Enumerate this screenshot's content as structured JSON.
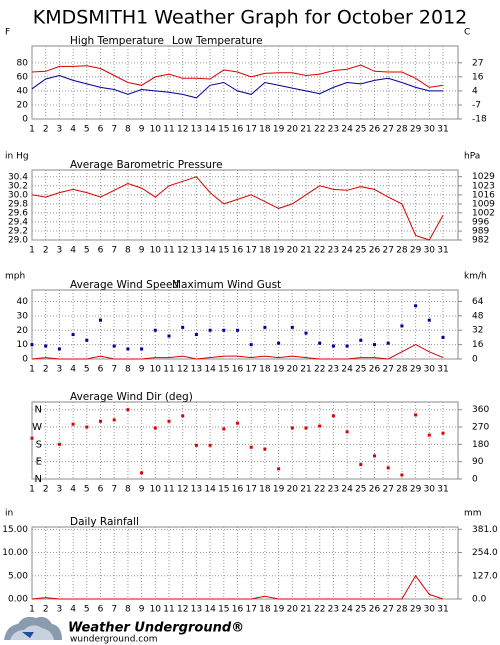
{
  "title": "KMDSMITH1 Weather Graph for October 2012",
  "chart_data": [
    {
      "type": "line",
      "y_label": "F",
      "y2_label": "C",
      "categories": [
        "1",
        "2",
        "3",
        "4",
        "5",
        "6",
        "7",
        "8",
        "9",
        "10",
        "11",
        "12",
        "13",
        "14",
        "15",
        "16",
        "17",
        "18",
        "19",
        "20",
        "21",
        "22",
        "23",
        "24",
        "25",
        "26",
        "27",
        "28",
        "29",
        "30",
        "31"
      ],
      "series": [
        {
          "name": "High Temperature",
          "color": "#dd0000",
          "values": [
            67,
            68,
            75,
            75,
            76,
            72,
            62,
            52,
            48,
            60,
            64,
            58,
            58,
            57,
            70,
            67,
            60,
            65,
            66,
            66,
            62,
            64,
            69,
            71,
            77,
            68,
            67,
            67,
            58,
            45,
            48
          ]
        },
        {
          "name": "Low Temperature",
          "color": "#000099",
          "values": [
            43,
            57,
            62,
            55,
            50,
            45,
            42,
            35,
            42,
            40,
            38,
            35,
            30,
            48,
            52,
            40,
            35,
            52,
            48,
            44,
            40,
            36,
            45,
            52,
            50,
            55,
            58,
            52,
            45,
            40,
            40
          ]
        }
      ],
      "ylim": [
        0,
        104
      ],
      "yticks": [
        0,
        20,
        40,
        60,
        80
      ],
      "y2lim": [
        -17.8,
        40
      ],
      "y2ticks": [
        {
          "value": -17.8,
          "label": "-18"
        },
        {
          "value": -6.7,
          "label": "-7"
        },
        {
          "value": 4.4,
          "label": "4"
        },
        {
          "value": 15.6,
          "label": "16"
        },
        {
          "value": 26.7,
          "label": "27"
        }
      ],
      "grid": true
    },
    {
      "type": "line",
      "y_label": "in Hg",
      "y2_label": "hPa",
      "categories": [
        "1",
        "2",
        "3",
        "4",
        "5",
        "6",
        "7",
        "8",
        "9",
        "10",
        "11",
        "12",
        "13",
        "14",
        "15",
        "16",
        "17",
        "18",
        "19",
        "20",
        "21",
        "22",
        "23",
        "24",
        "25",
        "26",
        "27",
        "28",
        "29",
        "30",
        "31"
      ],
      "series": [
        {
          "name": "Average Barometric Pressure",
          "color": "#dd0000",
          "values": [
            30.0,
            29.95,
            30.05,
            30.12,
            30.05,
            29.95,
            30.1,
            30.25,
            30.15,
            29.95,
            30.2,
            30.3,
            30.4,
            30.05,
            29.8,
            29.9,
            30.0,
            29.85,
            29.7,
            29.8,
            30.0,
            30.2,
            30.12,
            30.1,
            30.18,
            30.12,
            29.95,
            29.8,
            29.1,
            29.0,
            29.55
          ]
        }
      ],
      "ylim": [
        29.0,
        30.55
      ],
      "yticks": [
        {
          "value": 29.0,
          "label": "29.0"
        },
        29.2,
        29.4,
        29.6,
        29.8,
        {
          "value": 30.0,
          "label": "30.0"
        },
        30.2,
        30.4
      ],
      "y2lim": [
        982.1,
        1034.5
      ],
      "y2ticks": [
        {
          "value": 982.1,
          "label": "982"
        },
        {
          "value": 988.8,
          "label": "989"
        },
        {
          "value": 995.6,
          "label": "996"
        },
        {
          "value": 1002.4,
          "label": "1002"
        },
        {
          "value": 1009.1,
          "label": "1009"
        },
        {
          "value": 1015.9,
          "label": "1016"
        },
        {
          "value": 1022.7,
          "label": "1023"
        },
        {
          "value": 1029.5,
          "label": "1029"
        }
      ],
      "grid": true
    },
    {
      "type": "line",
      "y_label": "mph",
      "y2_label": "km/h",
      "categories": [
        "1",
        "2",
        "3",
        "4",
        "5",
        "6",
        "7",
        "8",
        "9",
        "10",
        "11",
        "12",
        "13",
        "14",
        "15",
        "16",
        "17",
        "18",
        "19",
        "20",
        "21",
        "22",
        "23",
        "24",
        "25",
        "26",
        "27",
        "28",
        "29",
        "30",
        "31"
      ],
      "series": [
        {
          "name": "Average Wind Speed",
          "color": "#dd0000",
          "values": [
            0,
            1,
            0,
            0,
            0,
            2,
            0,
            0,
            0,
            1,
            1,
            2,
            0,
            1,
            2,
            2,
            1,
            2,
            1,
            2,
            1,
            0,
            0,
            0,
            1,
            1,
            0,
            5,
            10,
            5,
            1
          ]
        },
        {
          "name": "Maximum Wind Gust",
          "color": "#000099",
          "type": "scatter",
          "values": [
            10,
            9,
            7,
            17,
            13,
            27,
            9,
            7,
            7,
            20,
            16,
            22,
            17,
            20,
            20,
            20,
            10,
            22,
            11,
            22,
            18,
            11,
            9,
            9,
            13,
            10,
            11,
            23,
            37,
            27,
            15
          ]
        }
      ],
      "ylim": [
        0,
        48
      ],
      "yticks": [
        0,
        10,
        20,
        30,
        40
      ],
      "y2lim": [
        0,
        77.2
      ],
      "y2ticks": [
        0,
        {
          "value": 16.1,
          "label": "16"
        },
        {
          "value": 32.2,
          "label": "32"
        },
        {
          "value": 48.3,
          "label": "48"
        },
        {
          "value": 64.4,
          "label": "64"
        }
      ],
      "grid": true
    },
    {
      "type": "scatter",
      "categories": [
        "1",
        "2",
        "3",
        "4",
        "5",
        "6",
        "7",
        "8",
        "9",
        "10",
        "11",
        "12",
        "13",
        "14",
        "15",
        "16",
        "17",
        "18",
        "19",
        "20",
        "21",
        "22",
        "23",
        "24",
        "25",
        "26",
        "27",
        "28",
        "29",
        "30",
        "31"
      ],
      "series": [
        {
          "name": "Average Wind Dir (deg)",
          "color": "#dd0000",
          "values": [
            212,
            null,
            180,
            285,
            270,
            300,
            307,
            360,
            32,
            265,
            300,
            328,
            175,
            175,
            260,
            290,
            165,
            155,
            53,
            265,
            265,
            275,
            328,
            245,
            75,
            120,
            58,
            21,
            333,
            228,
            238
          ]
        }
      ],
      "ylim": [
        0,
        400
      ],
      "yticks": [
        {
          "value": 0,
          "label": "N"
        },
        {
          "value": 90,
          "label": "E"
        },
        {
          "value": 180,
          "label": "S"
        },
        {
          "value": 270,
          "label": "W"
        },
        {
          "value": 360,
          "label": "N"
        }
      ],
      "y2lim": [
        0,
        400
      ],
      "y2ticks": [
        0,
        90,
        180,
        270,
        360
      ],
      "grid": true
    },
    {
      "type": "line",
      "y_label": "in",
      "y2_label": "mm",
      "categories": [
        "1",
        "2",
        "3",
        "4",
        "5",
        "6",
        "7",
        "8",
        "9",
        "10",
        "11",
        "12",
        "13",
        "14",
        "15",
        "16",
        "17",
        "18",
        "19",
        "20",
        "21",
        "22",
        "23",
        "24",
        "25",
        "26",
        "27",
        "28",
        "29",
        "30",
        "31"
      ],
      "series": [
        {
          "name": "Daily Rainfall",
          "color": "#dd0000",
          "values": [
            0,
            0.3,
            0,
            0,
            0,
            0,
            0,
            0,
            0,
            0,
            0,
            0,
            0,
            0,
            0,
            0,
            0,
            0.6,
            0,
            0,
            0,
            0,
            0,
            0,
            0,
            0,
            0,
            0,
            5.0,
            1.0,
            0
          ]
        }
      ],
      "ylim": [
        0,
        15.5
      ],
      "yticks": [
        {
          "value": 0,
          "label": "0.00"
        },
        {
          "value": 5,
          "label": "5.00"
        },
        {
          "value": 10,
          "label": "10.00"
        },
        {
          "value": 15,
          "label": "15.00"
        }
      ],
      "y2lim": [
        0,
        393.7
      ],
      "y2ticks": [
        {
          "value": 0,
          "label": "0.0"
        },
        {
          "value": 127,
          "label": "127.0"
        },
        {
          "value": 254,
          "label": "254.0"
        },
        {
          "value": 381,
          "label": "381.0"
        }
      ],
      "grid": true
    }
  ],
  "footer": {
    "brand": "Weather Underground®",
    "url": "wunderground.com"
  }
}
